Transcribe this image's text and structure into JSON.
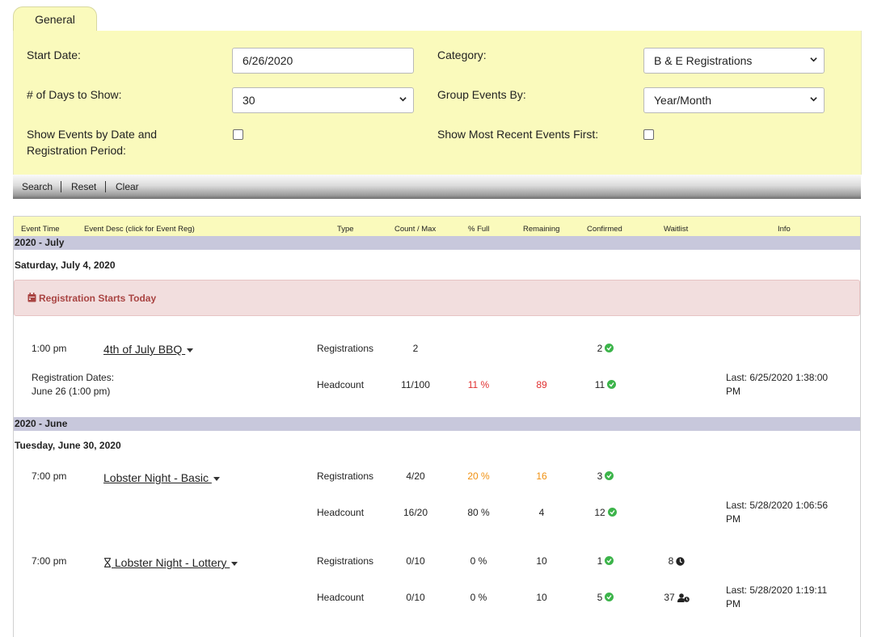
{
  "tab": {
    "label": "General"
  },
  "filters": {
    "start_date_label": "Start Date:",
    "start_date_value": "6/26/2020",
    "category_label": "Category:",
    "category_value": "B & E Registrations",
    "days_label": "# of Days to Show:",
    "days_value": "30",
    "group_label": "Group Events By:",
    "group_value": "Year/Month",
    "show_by_date_label_1": "Show Events by Date and",
    "show_by_date_label_2": "Registration Period:",
    "recent_first_label": "Show Most Recent Events First:"
  },
  "toolbar": {
    "search": "Search",
    "reset": "Reset",
    "clear": "Clear"
  },
  "columns": {
    "time": "Event Time",
    "desc": "Event Desc (click for Event Reg)",
    "type": "Type",
    "count": "Count / Max",
    "full": "% Full",
    "remaining": "Remaining",
    "confirmed": "Confirmed",
    "waitlist": "Waitlist",
    "info": "Info"
  },
  "groups": [
    {
      "label": "2020 - July",
      "day": "Saturday, July 4, 2020",
      "alert": "Registration Starts Today",
      "events": [
        {
          "time": "1:00 pm",
          "name": "4th of July BBQ ",
          "reg_dates_1": "Registration Dates:",
          "reg_dates_2": "June 26 (1:00 pm)",
          "rows": [
            {
              "type": "Registrations",
              "count": "2",
              "full": "",
              "remaining": "",
              "confirmed": "2",
              "waitlist": "",
              "info_1": "",
              "info_2": ""
            },
            {
              "type": "Headcount",
              "count": "11/100",
              "full": "11 %",
              "remaining": "89",
              "confirmed": "11",
              "waitlist": "",
              "info_1": "Last: 6/25/2020 1:38:00",
              "info_2": "PM"
            }
          ]
        }
      ]
    },
    {
      "label": "2020 - June",
      "day": "Tuesday, June 30, 2020",
      "events": [
        {
          "time": "7:00 pm",
          "name": "Lobster Night - Basic ",
          "rows": [
            {
              "type": "Registrations",
              "count": "4/20",
              "full": "20 %",
              "remaining": "16",
              "confirmed": "3",
              "waitlist": "",
              "info_1": "",
              "info_2": ""
            },
            {
              "type": "Headcount",
              "count": "16/20",
              "full": "80 %",
              "remaining": "4",
              "confirmed": "12",
              "waitlist": "",
              "info_1": "Last: 5/28/2020 1:06:56",
              "info_2": "PM"
            }
          ]
        },
        {
          "time": "7:00 pm",
          "name": " Lobster Night - Lottery ",
          "rows": [
            {
              "type": "Registrations",
              "count": "0/10",
              "full": "0 %",
              "remaining": "10",
              "confirmed": "1",
              "waitlist": "8",
              "info_1": "",
              "info_2": ""
            },
            {
              "type": "Headcount",
              "count": "0/10",
              "full": "0 %",
              "remaining": "10",
              "confirmed": "5",
              "waitlist": "37",
              "info_1": "Last: 5/28/2020 1:19:11",
              "info_2": "PM"
            }
          ]
        }
      ]
    }
  ],
  "colors": {
    "panel": "#fafabc",
    "group_bar": "#c8c8dc",
    "alert_bg": "#f2dede",
    "alert_text": "#a94442",
    "ok": "#3cb44a",
    "warn": "#f09010",
    "danger": "#e03030"
  }
}
